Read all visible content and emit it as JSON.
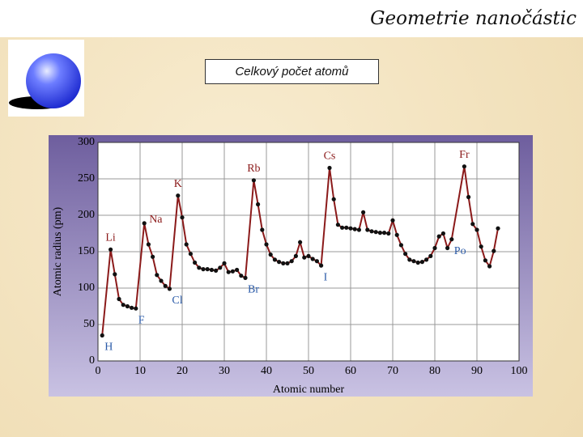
{
  "header": {
    "title": "Geometrie nanočástic"
  },
  "box": {
    "label": "Celkový počet atomů"
  },
  "chart_data": {
    "type": "line",
    "xlabel": "Atomic number",
    "ylabel": "Atomic radius (pm)",
    "x": [
      1,
      3,
      4,
      5,
      6,
      7,
      8,
      9,
      11,
      12,
      13,
      14,
      15,
      16,
      17,
      19,
      20,
      21,
      22,
      23,
      24,
      25,
      26,
      27,
      28,
      29,
      30,
      31,
      32,
      33,
      34,
      35,
      37,
      38,
      39,
      40,
      41,
      42,
      43,
      44,
      45,
      46,
      47,
      48,
      49,
      50,
      51,
      52,
      53,
      55,
      56,
      57,
      58,
      59,
      60,
      61,
      62,
      63,
      64,
      65,
      66,
      67,
      68,
      69,
      70,
      71,
      72,
      73,
      74,
      75,
      76,
      77,
      78,
      79,
      80,
      81,
      82,
      83,
      84,
      87,
      88,
      89,
      90,
      91,
      92,
      93,
      94,
      95
    ],
    "values": [
      35,
      153,
      119,
      85,
      77,
      75,
      73,
      72,
      189,
      160,
      143,
      118,
      110,
      103,
      99,
      227,
      197,
      160,
      147,
      135,
      128,
      126,
      126,
      125,
      124,
      128,
      134,
      122,
      123,
      125,
      117,
      114,
      248,
      215,
      180,
      160,
      146,
      139,
      136,
      134,
      134,
      137,
      144,
      163,
      142,
      144,
      140,
      137,
      131,
      265,
      222,
      187,
      183,
      183,
      182,
      181,
      180,
      204,
      180,
      178,
      177,
      176,
      176,
      175,
      193,
      173,
      159,
      147,
      139,
      137,
      135,
      136,
      139,
      144,
      155,
      171,
      175,
      155,
      167,
      267,
      225,
      188,
      180,
      157,
      138,
      130,
      151,
      182
    ],
    "color": "#8b1a1a",
    "marker_color": "#111111",
    "xlim": [
      0,
      100
    ],
    "ylim": [
      0,
      300
    ],
    "xticks": [
      0,
      10,
      20,
      30,
      40,
      50,
      60,
      70,
      80,
      90,
      100
    ],
    "yticks": [
      0,
      50,
      100,
      150,
      200,
      250,
      300
    ],
    "grid": true,
    "annotations": [
      {
        "label": "H",
        "x": 1,
        "position": "below",
        "color": "#2a5aa8"
      },
      {
        "label": "Li",
        "x": 3,
        "position": "above",
        "color": "#8b1a1a"
      },
      {
        "label": "F",
        "x": 9,
        "position": "below",
        "color": "#2a5aa8"
      },
      {
        "label": "Na",
        "x": 11,
        "position": "right",
        "color": "#8b1a1a"
      },
      {
        "label": "Cl",
        "x": 17,
        "position": "below",
        "color": "#2a5aa8"
      },
      {
        "label": "K",
        "x": 19,
        "position": "above",
        "color": "#8b1a1a"
      },
      {
        "label": "Br",
        "x": 35,
        "position": "below",
        "color": "#2a5aa8"
      },
      {
        "label": "Rb",
        "x": 37,
        "position": "above",
        "color": "#8b1a1a"
      },
      {
        "label": "I",
        "x": 53,
        "position": "below",
        "color": "#2a5aa8"
      },
      {
        "label": "Cs",
        "x": 55,
        "position": "above",
        "color": "#8b1a1a"
      },
      {
        "label": "Po",
        "x": 84,
        "position": "below",
        "color": "#2a5aa8"
      },
      {
        "label": "Fr",
        "x": 87,
        "position": "above",
        "color": "#8b1a1a"
      }
    ]
  }
}
